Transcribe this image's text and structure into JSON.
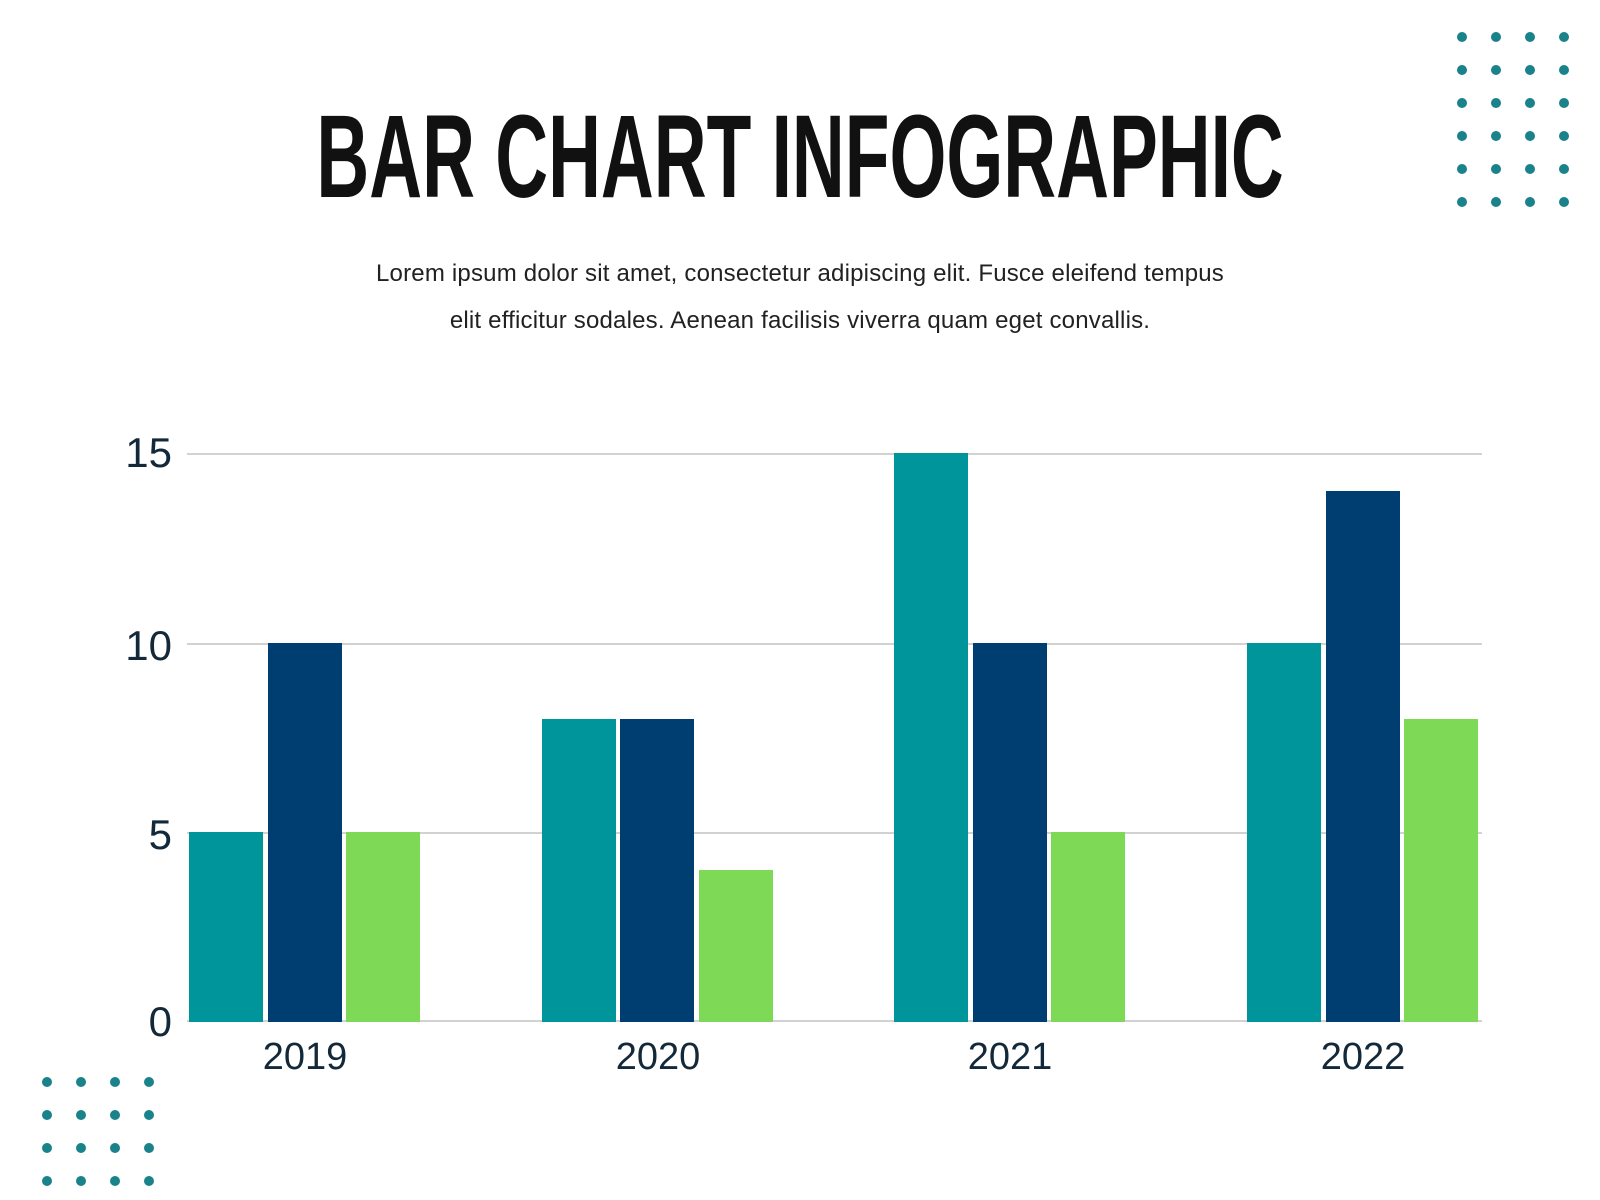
{
  "title": "BAR CHART INFOGRAPHIC",
  "subtitle": {
    "line1": "Lorem ipsum dolor sit amet, consectetur adipiscing elit. Fusce eleifend tempus",
    "line2": "elit efficitur sodales. Aenean facilisis viverra quam eget convallis."
  },
  "colors": {
    "teal_bar": "#00949b",
    "navy_bar": "#003e72",
    "green_bar": "#7ed957",
    "dot": "#19828a",
    "gridline": "#d2d2d2",
    "axis_text": "#13293a",
    "title_text": "#111111"
  },
  "chart_data": {
    "type": "bar",
    "title": "BAR CHART INFOGRAPHIC",
    "categories": [
      "2019",
      "2020",
      "2021",
      "2022"
    ],
    "series": [
      {
        "name": "series-1-teal",
        "color": "#00949b",
        "values": [
          5,
          8,
          15,
          10
        ]
      },
      {
        "name": "series-2-navy",
        "color": "#003e72",
        "values": [
          10,
          8,
          10,
          14
        ]
      },
      {
        "name": "series-3-green",
        "color": "#7ed957",
        "values": [
          5,
          4,
          5,
          8
        ]
      }
    ],
    "yticks": [
      "0",
      "5",
      "10",
      "15"
    ],
    "ylim": [
      0,
      15
    ],
    "grid": true,
    "legend_position": "none",
    "xlabel": "",
    "ylabel": ""
  },
  "decor": {
    "top_right_dots": {
      "rows": 6,
      "cols": 4
    },
    "bottom_left_dots": {
      "rows": 4,
      "cols": 4
    }
  }
}
